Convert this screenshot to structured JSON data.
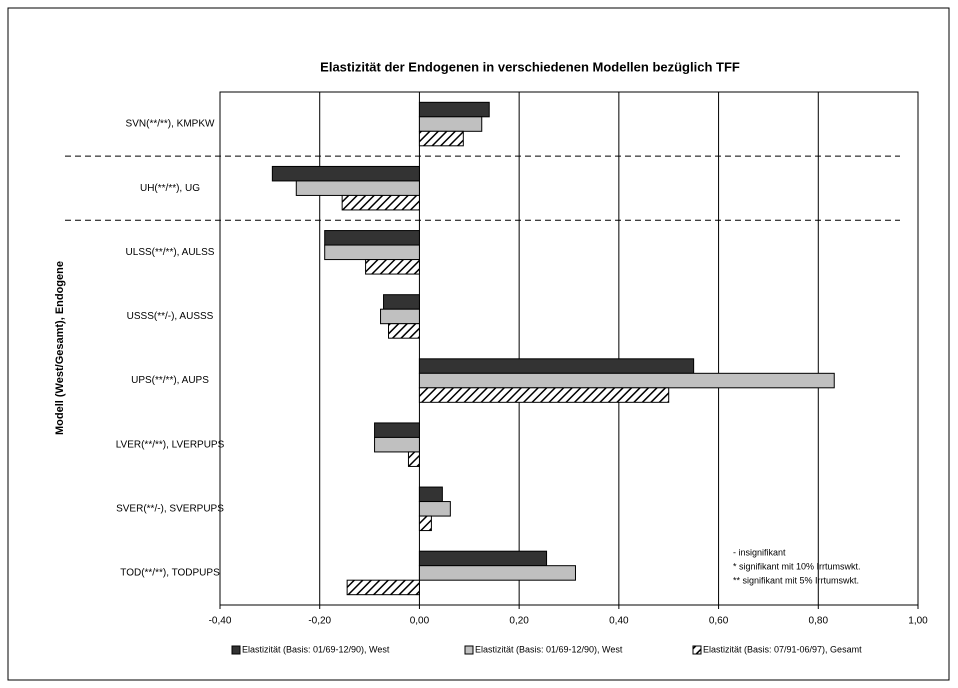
{
  "chart_data": {
    "type": "barh",
    "title": "Elastizität der Endogenen in verschiedenen Modellen bezüglich TFF",
    "y_label": "Modell (West/Gesamt), Endogene",
    "categories": [
      "SVN(**/**), KMPKW",
      "UH(**/**), UG",
      "ULSS(**/**), AULSS",
      "USSS(**/-), AUSSS",
      "UPS(**/**), AUPS",
      "LVER(**/**), LVERPUPS",
      "SVER(**/-), SVERPUPS",
      "TOD(**/**), TODPUPS"
    ],
    "series": [
      {
        "name": "Elastizität (Basis: 01/69-12/90), West",
        "color": "#333333",
        "values": [
          0.14,
          -0.295,
          -0.19,
          -0.072,
          0.55,
          -0.09,
          0.046,
          0.255
        ]
      },
      {
        "name": "Elastizität (Basis: 01/69-12/90), West",
        "color": "#c0c0c0",
        "values": [
          0.125,
          -0.247,
          -0.19,
          -0.078,
          0.832,
          -0.09,
          0.062,
          0.313
        ]
      },
      {
        "name": "Elastizität (Basis: 07/91-06/97), Gesamt",
        "color": "#000000",
        "pattern": "hatch",
        "values": [
          0.088,
          -0.155,
          -0.108,
          -0.062,
          0.5,
          -0.022,
          0.024,
          -0.145
        ]
      }
    ],
    "xlim": [
      -0.4,
      1.0
    ],
    "xticks": [
      {
        "value": -0.4,
        "label": "-0,40"
      },
      {
        "value": -0.2,
        "label": "-0,20"
      },
      {
        "value": 0,
        "label": "0,00"
      },
      {
        "value": 0.2,
        "label": "0,20"
      },
      {
        "value": 0.4,
        "label": "0,40"
      },
      {
        "value": 0.6,
        "label": "0,60"
      },
      {
        "value": 0.8,
        "label": "0,80"
      },
      {
        "value": 1.0,
        "label": "1,00"
      }
    ],
    "grid": true,
    "annotations": [
      "- insignifikant",
      "* signifikant mit 10% Irrtumswkt.",
      "** signifikant mit 5% Irrtumswkt."
    ]
  }
}
